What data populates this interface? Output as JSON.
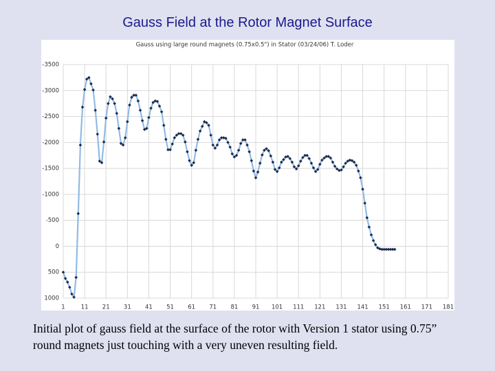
{
  "title": "Gauss Field at the Rotor Magnet Surface",
  "caption": "Initial plot of gauss field at the surface of the rotor with Version 1 stator using 0.75” round magnets just touching with a very uneven resulting field.",
  "chart_data": {
    "type": "line",
    "title": "Gauss using large round magnets (0.75x0.5\") in Stator (03/24/06)  T. Loder",
    "line_color": "#8fbbe6",
    "marker_color": "#1c2a4a",
    "grid": true,
    "xlim": [
      1,
      181
    ],
    "xticks": [
      1,
      11,
      21,
      31,
      41,
      51,
      61,
      71,
      81,
      91,
      101,
      111,
      121,
      131,
      141,
      151,
      161,
      171,
      181
    ],
    "ylim": [
      1000,
      -3500
    ],
    "yticks": [
      -3500,
      -3000,
      -2500,
      -2000,
      -1500,
      -1000,
      -500,
      0,
      500,
      1000
    ],
    "x": [
      1,
      2,
      3,
      4,
      5,
      6,
      7,
      8,
      9,
      10,
      11,
      12,
      13,
      14,
      15,
      16,
      17,
      18,
      19,
      20,
      21,
      22,
      23,
      24,
      25,
      26,
      27,
      28,
      29,
      30,
      31,
      32,
      33,
      34,
      35,
      36,
      37,
      38,
      39,
      40,
      41,
      42,
      43,
      44,
      45,
      46,
      47,
      48,
      49,
      50,
      51,
      52,
      53,
      54,
      55,
      56,
      57,
      58,
      59,
      60,
      61,
      62,
      63,
      64,
      65,
      66,
      67,
      68,
      69,
      70,
      71,
      72,
      73,
      74,
      75,
      76,
      77,
      78,
      79,
      80,
      81,
      82,
      83,
      84,
      85,
      86,
      87,
      88,
      89,
      90,
      91,
      92,
      93,
      94,
      95,
      96,
      97,
      98,
      99,
      100,
      101,
      102,
      103,
      104,
      105,
      106,
      107,
      108,
      109,
      110,
      111,
      112,
      113,
      114,
      115,
      116,
      117,
      118,
      119,
      120,
      121,
      122,
      123,
      124,
      125,
      126,
      127,
      128,
      129,
      130,
      131,
      132,
      133,
      134,
      135,
      136,
      137,
      138,
      139,
      140,
      141,
      142,
      143,
      144,
      145,
      146,
      147,
      148,
      149,
      150,
      151,
      152,
      153,
      154,
      155,
      156
    ],
    "values": [
      500,
      620,
      690,
      790,
      920,
      980,
      600,
      -630,
      -1950,
      -2680,
      -3020,
      -3220,
      -3250,
      -3130,
      -3010,
      -2620,
      -2160,
      -1640,
      -1610,
      -2010,
      -2470,
      -2750,
      -2880,
      -2840,
      -2750,
      -2560,
      -2270,
      -1980,
      -1950,
      -2090,
      -2400,
      -2720,
      -2870,
      -2910,
      -2910,
      -2800,
      -2620,
      -2420,
      -2250,
      -2270,
      -2480,
      -2660,
      -2770,
      -2800,
      -2790,
      -2700,
      -2590,
      -2330,
      -2060,
      -1860,
      -1860,
      -1970,
      -2090,
      -2140,
      -2170,
      -2170,
      -2140,
      -2010,
      -1820,
      -1650,
      -1560,
      -1610,
      -1850,
      -2060,
      -2220,
      -2310,
      -2400,
      -2380,
      -2330,
      -2140,
      -1950,
      -1890,
      -1950,
      -2050,
      -2090,
      -2090,
      -2080,
      -2000,
      -1910,
      -1780,
      -1720,
      -1750,
      -1850,
      -1980,
      -2050,
      -2050,
      -1950,
      -1820,
      -1650,
      -1450,
      -1320,
      -1430,
      -1600,
      -1760,
      -1850,
      -1880,
      -1840,
      -1740,
      -1620,
      -1480,
      -1440,
      -1510,
      -1620,
      -1670,
      -1720,
      -1730,
      -1690,
      -1620,
      -1530,
      -1490,
      -1550,
      -1640,
      -1710,
      -1750,
      -1750,
      -1690,
      -1600,
      -1510,
      -1440,
      -1480,
      -1580,
      -1660,
      -1700,
      -1730,
      -1730,
      -1700,
      -1620,
      -1540,
      -1490,
      -1460,
      -1470,
      -1530,
      -1600,
      -1640,
      -1660,
      -1650,
      -1620,
      -1560,
      -1450,
      -1320,
      -1100,
      -830,
      -550,
      -370,
      -220,
      -110,
      -30,
      30,
      50,
      60,
      60,
      60,
      60,
      60,
      60,
      60
    ]
  }
}
